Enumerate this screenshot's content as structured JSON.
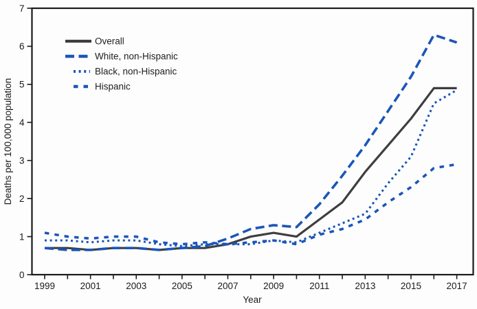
{
  "chart_data": {
    "type": "line",
    "title": "",
    "xlabel": "Year",
    "ylabel": "Deaths per 100,000 population",
    "ylim": [
      0,
      7
    ],
    "yticks": [
      0,
      1,
      2,
      3,
      4,
      5,
      6,
      7
    ],
    "x": [
      1999,
      2000,
      2001,
      2002,
      2003,
      2004,
      2005,
      2006,
      2007,
      2008,
      2009,
      2010,
      2011,
      2012,
      2013,
      2014,
      2015,
      2016,
      2017
    ],
    "x_labeled_ticks": [
      1999,
      2001,
      2003,
      2005,
      2007,
      2009,
      2011,
      2013,
      2015,
      2017
    ],
    "grid": false,
    "legend_position": "top-left",
    "axis_color": "#1a1a1a",
    "series": [
      {
        "name": "Overall",
        "color": "#3e3e3e",
        "line_style": "solid",
        "values": [
          0.7,
          0.7,
          0.65,
          0.7,
          0.7,
          0.65,
          0.7,
          0.7,
          0.8,
          1.0,
          1.1,
          1.0,
          1.45,
          1.9,
          2.7,
          3.4,
          4.1,
          4.9,
          4.9
        ]
      },
      {
        "name": "White, non-Hispanic",
        "color": "#1b56b8",
        "line_style": "long-dash",
        "values": [
          0.7,
          0.65,
          0.65,
          0.7,
          0.7,
          0.65,
          0.7,
          0.75,
          0.95,
          1.2,
          1.3,
          1.25,
          1.85,
          2.6,
          3.4,
          4.3,
          5.2,
          6.3,
          6.1
        ]
      },
      {
        "name": "Black, non-Hispanic",
        "color": "#1b56b8",
        "line_style": "dot",
        "values": [
          0.9,
          0.9,
          0.85,
          0.9,
          0.9,
          0.8,
          0.75,
          0.8,
          0.8,
          0.8,
          0.9,
          0.85,
          1.1,
          1.35,
          1.6,
          2.4,
          3.1,
          4.5,
          4.85
        ]
      },
      {
        "name": "Hispanic",
        "color": "#1b56b8",
        "line_style": "dash",
        "values": [
          1.1,
          1.0,
          0.95,
          1.0,
          1.0,
          0.85,
          0.8,
          0.85,
          0.8,
          0.85,
          0.9,
          0.8,
          1.05,
          1.2,
          1.45,
          1.9,
          2.3,
          2.8,
          2.9
        ]
      }
    ]
  }
}
